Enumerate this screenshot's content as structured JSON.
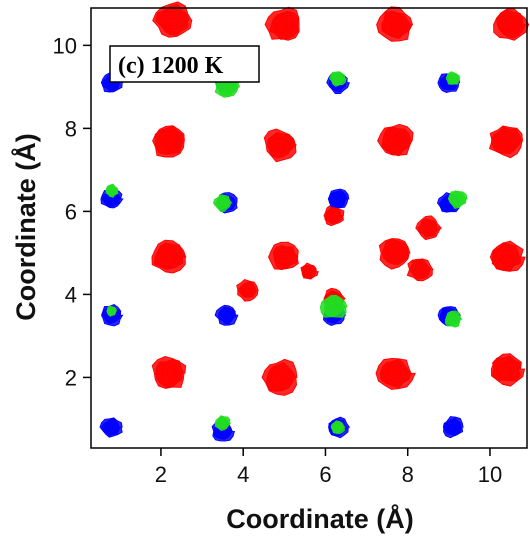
{
  "chart_data": {
    "type": "scatter",
    "title": "",
    "annotation": "(c) 1200 K",
    "xlabel": "Coordinate (Å)",
    "ylabel": "Coordinate (Å)",
    "xlim": [
      0.3,
      10.9
    ],
    "ylim": [
      0.3,
      10.9
    ],
    "xticks": [
      2,
      4,
      6,
      8,
      10
    ],
    "yticks": [
      2,
      4,
      6,
      8,
      10
    ],
    "grid": false,
    "legend": "none",
    "series": [
      {
        "color": "#ff0000",
        "points": [
          {
            "x": 2.3,
            "y": 10.6,
            "r": 0.45
          },
          {
            "x": 5.0,
            "y": 10.5,
            "r": 0.42
          },
          {
            "x": 7.7,
            "y": 10.5,
            "r": 0.42
          },
          {
            "x": 10.5,
            "y": 10.5,
            "r": 0.4
          },
          {
            "x": 2.2,
            "y": 7.7,
            "r": 0.42
          },
          {
            "x": 4.9,
            "y": 7.6,
            "r": 0.4
          },
          {
            "x": 7.7,
            "y": 7.7,
            "r": 0.42
          },
          {
            "x": 10.4,
            "y": 7.7,
            "r": 0.4
          },
          {
            "x": 2.2,
            "y": 4.9,
            "r": 0.42
          },
          {
            "x": 5.0,
            "y": 4.9,
            "r": 0.35
          },
          {
            "x": 5.6,
            "y": 4.55,
            "r": 0.2
          },
          {
            "x": 4.1,
            "y": 4.1,
            "r": 0.25
          },
          {
            "x": 6.2,
            "y": 5.9,
            "r": 0.25
          },
          {
            "x": 6.2,
            "y": 3.9,
            "r": 0.25
          },
          {
            "x": 7.7,
            "y": 5.0,
            "r": 0.38
          },
          {
            "x": 8.3,
            "y": 4.6,
            "r": 0.3
          },
          {
            "x": 8.5,
            "y": 5.6,
            "r": 0.28
          },
          {
            "x": 10.4,
            "y": 4.9,
            "r": 0.4
          },
          {
            "x": 2.2,
            "y": 2.1,
            "r": 0.42
          },
          {
            "x": 4.9,
            "y": 2.0,
            "r": 0.44
          },
          {
            "x": 7.7,
            "y": 2.1,
            "r": 0.42
          },
          {
            "x": 10.4,
            "y": 2.2,
            "r": 0.4
          }
        ]
      },
      {
        "color": "#0000ff",
        "points": [
          {
            "x": 0.8,
            "y": 9.1,
            "r": 0.25
          },
          {
            "x": 3.6,
            "y": 9.1,
            "r": 0.25
          },
          {
            "x": 6.3,
            "y": 9.1,
            "r": 0.25
          },
          {
            "x": 9.0,
            "y": 9.1,
            "r": 0.25
          },
          {
            "x": 0.8,
            "y": 6.3,
            "r": 0.25
          },
          {
            "x": 3.6,
            "y": 6.2,
            "r": 0.25
          },
          {
            "x": 6.3,
            "y": 6.3,
            "r": 0.25
          },
          {
            "x": 9.0,
            "y": 6.2,
            "r": 0.25
          },
          {
            "x": 0.8,
            "y": 3.5,
            "r": 0.25
          },
          {
            "x": 3.6,
            "y": 3.5,
            "r": 0.25
          },
          {
            "x": 6.2,
            "y": 3.5,
            "r": 0.25
          },
          {
            "x": 9.0,
            "y": 3.5,
            "r": 0.25
          },
          {
            "x": 0.8,
            "y": 0.8,
            "r": 0.25
          },
          {
            "x": 3.5,
            "y": 0.7,
            "r": 0.25
          },
          {
            "x": 6.3,
            "y": 0.8,
            "r": 0.25
          },
          {
            "x": 9.1,
            "y": 0.8,
            "r": 0.25
          }
        ]
      },
      {
        "color": "#22dd22",
        "points": [
          {
            "x": 3.6,
            "y": 9.0,
            "r": 0.28
          },
          {
            "x": 6.3,
            "y": 9.2,
            "r": 0.18
          },
          {
            "x": 9.1,
            "y": 9.2,
            "r": 0.16
          },
          {
            "x": 0.8,
            "y": 6.5,
            "r": 0.15
          },
          {
            "x": 3.5,
            "y": 6.2,
            "r": 0.2
          },
          {
            "x": 9.2,
            "y": 6.3,
            "r": 0.22
          },
          {
            "x": 6.2,
            "y": 3.7,
            "r": 0.3
          },
          {
            "x": 9.1,
            "y": 3.4,
            "r": 0.2
          },
          {
            "x": 0.8,
            "y": 3.6,
            "r": 0.12
          },
          {
            "x": 3.5,
            "y": 0.9,
            "r": 0.18
          },
          {
            "x": 6.3,
            "y": 0.8,
            "r": 0.16
          }
        ]
      }
    ]
  }
}
